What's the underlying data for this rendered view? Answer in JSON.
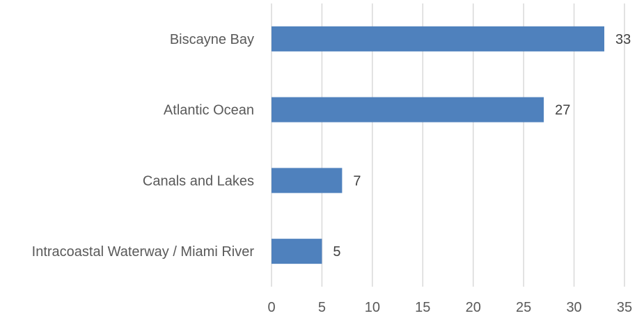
{
  "chart_data": {
    "type": "bar",
    "orientation": "horizontal",
    "categories": [
      "Biscayne Bay",
      "Atlantic Ocean",
      "Canals and Lakes",
      "Intracoastal Waterway / Miami River"
    ],
    "values": [
      33,
      27,
      7,
      5
    ],
    "title": "",
    "xlabel": "",
    "ylabel": "",
    "xlim": [
      0,
      35
    ],
    "x_ticks": [
      0,
      5,
      10,
      15,
      20,
      25,
      30,
      35
    ],
    "grid": "vertical",
    "legend": "none",
    "bar_color": "#4f81bd"
  }
}
